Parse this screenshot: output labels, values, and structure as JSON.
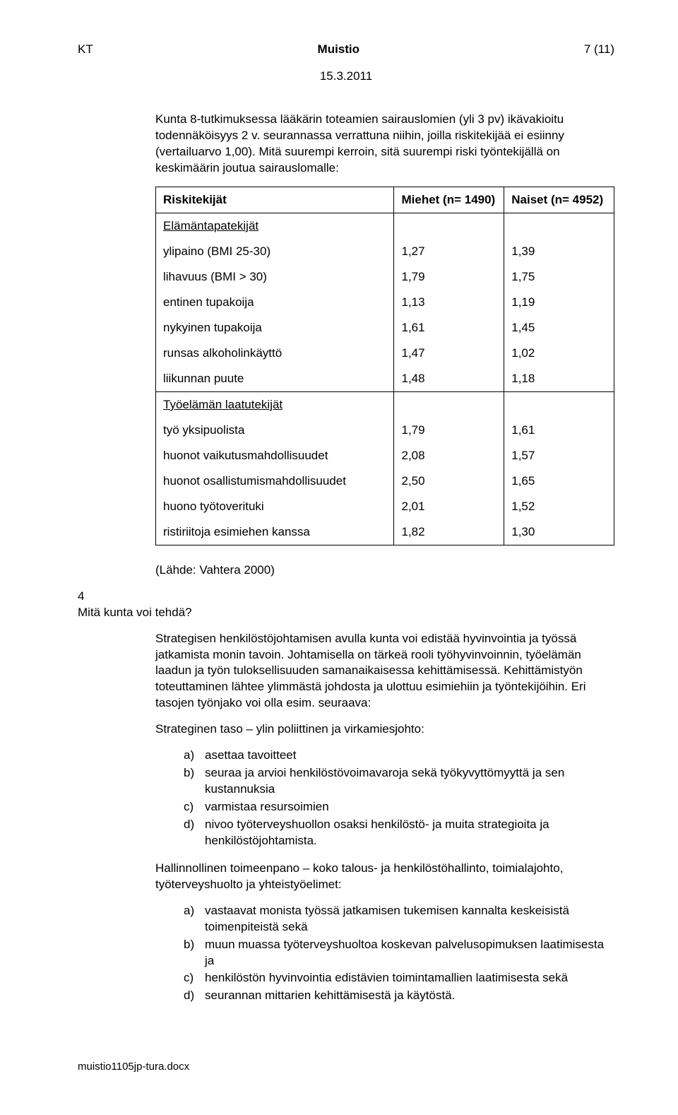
{
  "header": {
    "left": "KT",
    "center": "Muistio",
    "right": "7 (11)"
  },
  "date": "15.3.2011",
  "intro1": "Kunta 8-tutkimuksessa lääkärin toteamien sairauslomien (yli 3 pv) ikävakioitu todennäköisyys 2 v. seurannassa verrattuna niihin, joilla riskitekijää ei esiinny (vertailuarvo 1,00). Mitä suurempi kerroin, sitä suurempi riski työntekijällä on keskimäärin joutua sairauslomalle:",
  "table": {
    "head": {
      "c1": "Riskitekijät",
      "c2": "Miehet (n= 1490)",
      "c3": "Naiset (n= 4952)"
    },
    "group1_title": "Elämäntapatekijät",
    "group1": [
      {
        "label": "ylipaino (BMI 25-30)",
        "m": "1,27",
        "n": "1,39"
      },
      {
        "label": "lihavuus (BMI > 30)",
        "m": "1,79",
        "n": "1,75"
      },
      {
        "label": "entinen tupakoija",
        "m": "1,13",
        "n": "1,19"
      },
      {
        "label": "nykyinen tupakoija",
        "m": "1,61",
        "n": "1,45"
      },
      {
        "label": "runsas alkoholinkäyttö",
        "m": "1,47",
        "n": "1,02"
      },
      {
        "label": "liikunnan puute",
        "m": "1,48",
        "n": "1,18"
      }
    ],
    "group2_title": "Työelämän laatutekijät",
    "group2": [
      {
        "label": "työ yksipuolista",
        "m": "1,79",
        "n": "1,61"
      },
      {
        "label": "huonot vaikutusmahdollisuudet",
        "m": "2,08",
        "n": "1,57"
      },
      {
        "label": "huonot osallistumismahdollisuudet",
        "m": "2,50",
        "n": "1,65"
      },
      {
        "label": "huono työtoverituki",
        "m": "2,01",
        "n": "1,52"
      },
      {
        "label": "ristiriitoja esimiehen kanssa",
        "m": "1,82",
        "n": "1,30"
      }
    ]
  },
  "source": "(Lähde: Vahtera 2000)",
  "sec4": {
    "num": "4",
    "title": "Mitä kunta voi tehdä?"
  },
  "para2": "Strategisen henkilöstöjohtamisen avulla kunta voi edistää hyvinvointia ja työssä jatkamista monin tavoin. Johtamisella on tärkeä rooli työhyvinvoinnin, työelämän laadun ja työn tuloksellisuuden samanaikaisessa kehittämisessä. Kehittämistyön toteuttaminen lähtee ylimmästä johdosta ja ulottuu esimiehiin ja työntekijöihin. Eri tasojen työnjako voi olla esim. seuraava:",
  "subhead1": "Strateginen taso – ylin poliittinen ja virkamiesjohto:",
  "list1": [
    {
      "k": "a)",
      "v": "asettaa tavoitteet"
    },
    {
      "k": "b)",
      "v": "seuraa ja arvioi henkilöstövoimavaroja sekä työkyvyttömyyttä ja sen kustannuksia"
    },
    {
      "k": "c)",
      "v": "varmistaa resursoimien"
    },
    {
      "k": "d)",
      "v": "nivoo työterveyshuollon osaksi henkilöstö- ja muita strategioita ja henkilöstöjohtamista."
    }
  ],
  "subhead2": "Hallinnollinen toimeenpano – koko talous- ja henkilöstöhallinto, toimialajohto, työterveyshuolto ja yhteistyöelimet:",
  "list2": [
    {
      "k": "a)",
      "v": "vastaavat monista työssä jatkamisen tukemisen kannalta keskeisistä toimenpiteistä sekä"
    },
    {
      "k": "b)",
      "v": "muun muassa työterveyshuoltoa koskevan palvelusopimuksen laatimisesta ja"
    },
    {
      "k": "c)",
      "v": "henkilöstön hyvinvointia edistävien toimintamallien laatimisesta sekä"
    },
    {
      "k": "d)",
      "v": "seurannan mittarien kehittämisestä ja käytöstä."
    }
  ],
  "footer": "muistio1105jp-tura.docx"
}
